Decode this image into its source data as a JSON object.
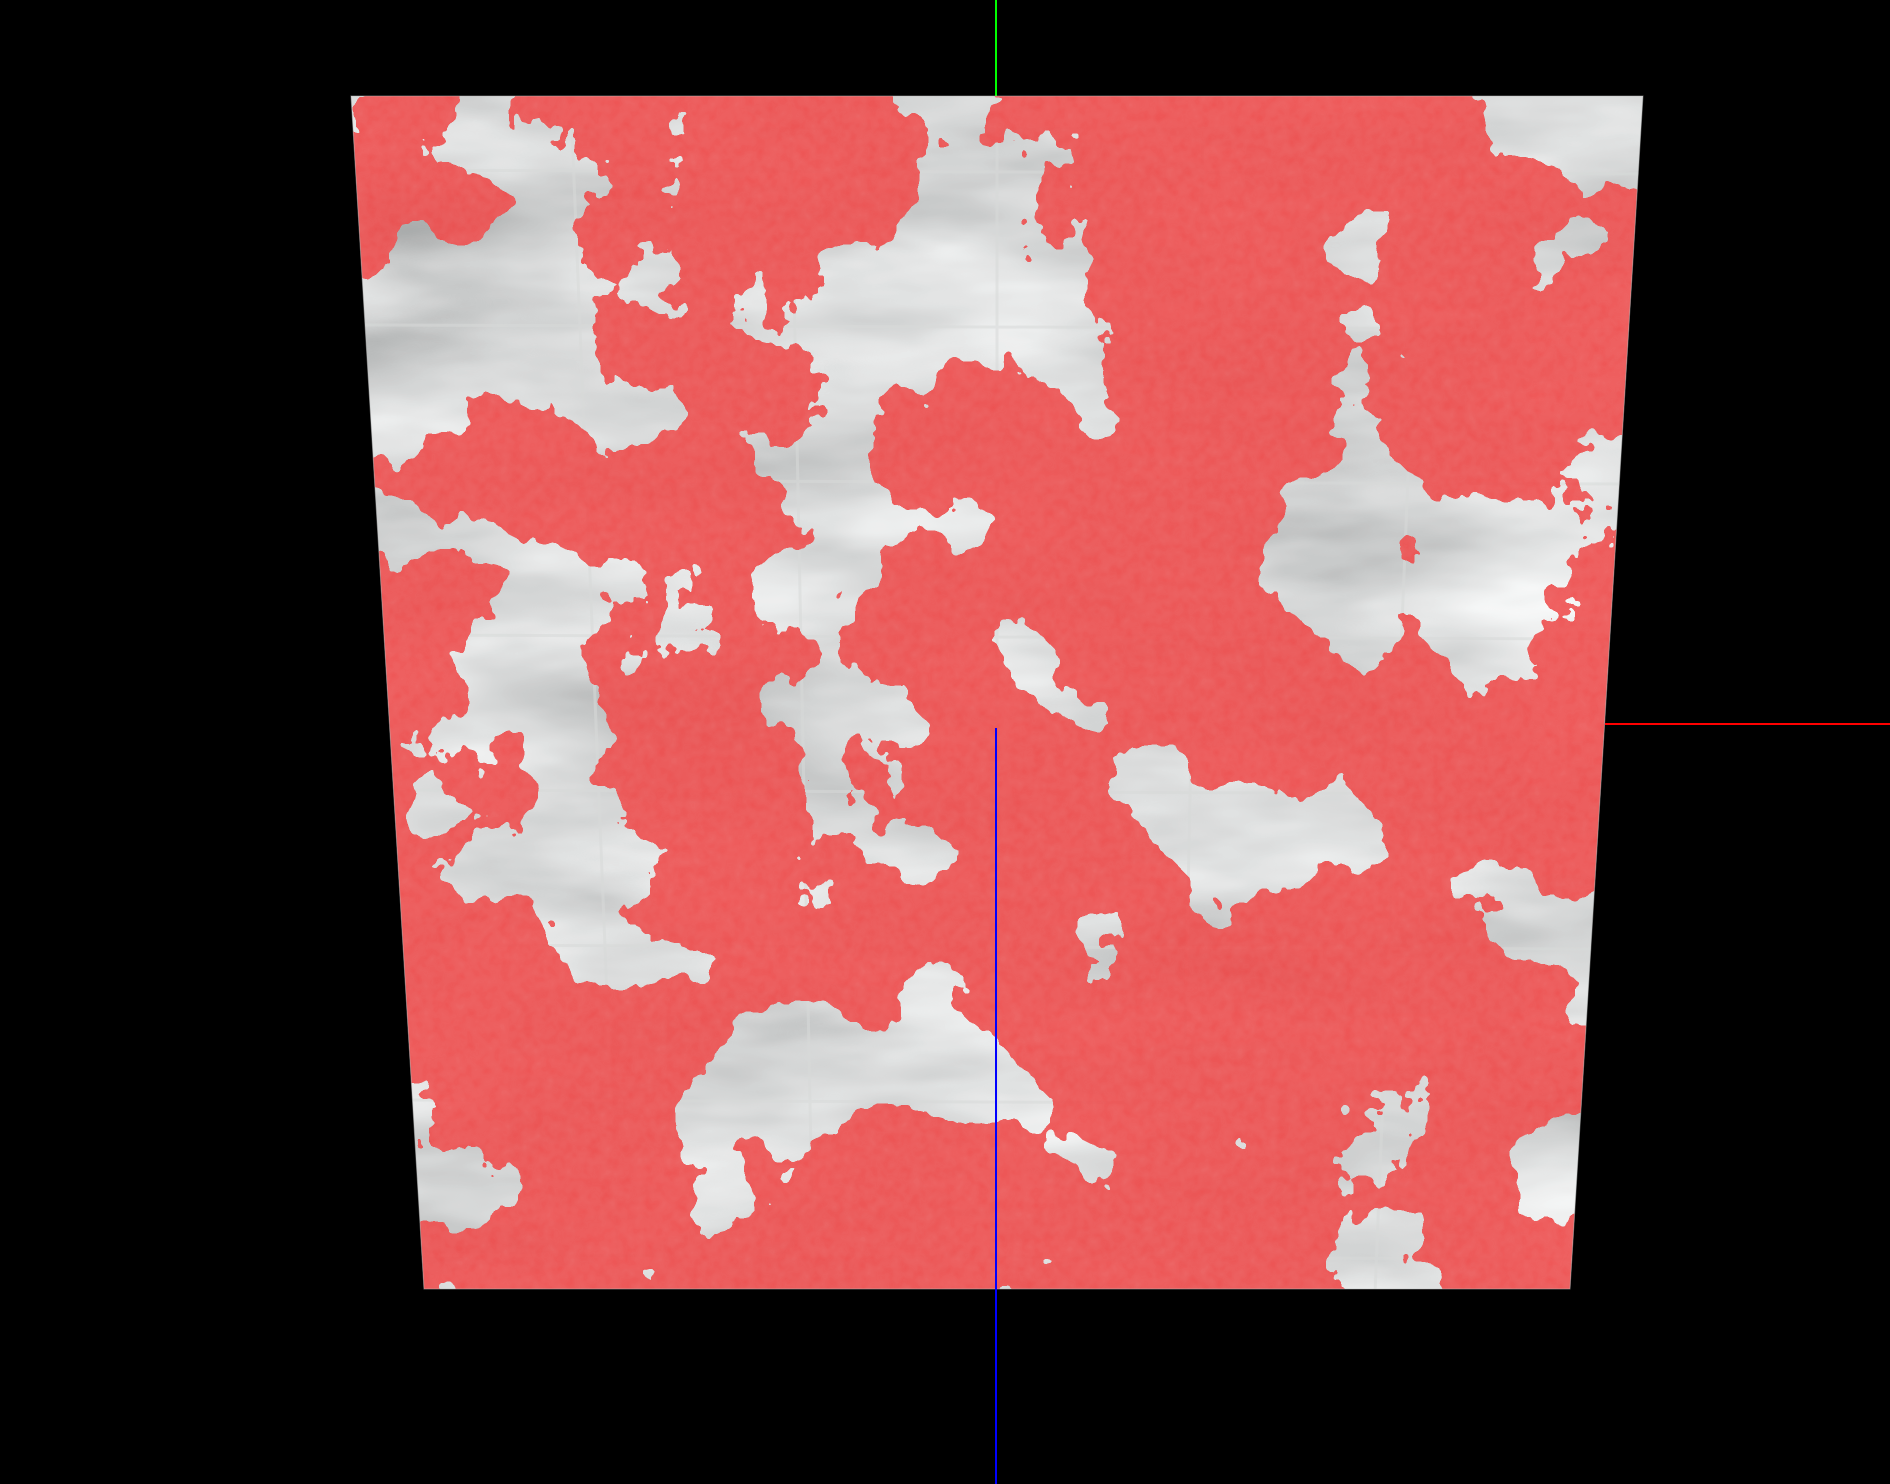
{
  "viewer": {
    "background_color": "#000000",
    "mesh_base_color": "#a9abaa",
    "mesh_light_color": "#cfd1d0",
    "mesh_dark_color": "#8d8f8e",
    "grid_line_color": "#d8dad9",
    "overlay_color": "#ef4a48",
    "overlay_dark_color": "#e23a39",
    "overlay_light_color": "#f56f6c",
    "overlay_coverage_fraction": 0.5
  },
  "axes": {
    "x_axis_color": "#ff0000",
    "y_axis_color": "#00ff00",
    "z_axis_color": "#0000ff"
  }
}
